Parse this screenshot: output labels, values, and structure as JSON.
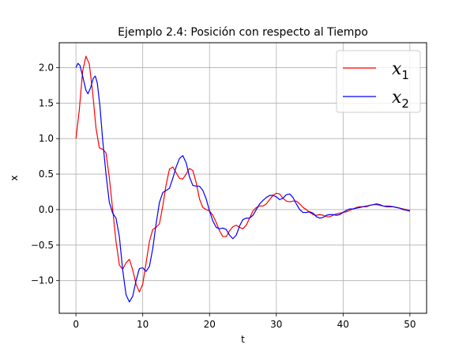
{
  "chart_data": {
    "type": "line",
    "title": "Ejemplo 2.4: Posición con respecto al Tiempo",
    "xlabel": "t",
    "ylabel": "x",
    "xlim": [
      -2.5,
      52.5
    ],
    "ylim": [
      -1.46,
      2.35
    ],
    "grid": true,
    "legend_position": "top-right",
    "xticks": [
      0,
      10,
      20,
      30,
      40,
      50
    ],
    "yticks": [
      -1.0,
      -0.5,
      0.0,
      0.5,
      1.0,
      1.5,
      2.0
    ],
    "xtick_labels": [
      "0",
      "10",
      "20",
      "30",
      "40",
      "50"
    ],
    "ytick_labels": [
      "−1.0",
      "−0.5",
      "0.0",
      "0.5",
      "1.0",
      "1.5",
      "2.0"
    ],
    "series": [
      {
        "name": "x1",
        "legend_main": "x",
        "legend_sub": "1",
        "color": "#ff0000",
        "points": [
          [
            0,
            1.0
          ],
          [
            0.5,
            1.4
          ],
          [
            1.0,
            1.95
          ],
          [
            1.5,
            2.16
          ],
          [
            2.0,
            2.05
          ],
          [
            2.5,
            1.65
          ],
          [
            3.0,
            1.15
          ],
          [
            3.5,
            0.87
          ],
          [
            4.0,
            0.85
          ],
          [
            4.5,
            0.8
          ],
          [
            5.0,
            0.45
          ],
          [
            5.5,
            0.0
          ],
          [
            6.0,
            -0.45
          ],
          [
            6.5,
            -0.78
          ],
          [
            7.0,
            -0.84
          ],
          [
            7.5,
            -0.75
          ],
          [
            8.0,
            -0.7
          ],
          [
            8.5,
            -0.85
          ],
          [
            9.0,
            -1.05
          ],
          [
            9.5,
            -1.16
          ],
          [
            10.0,
            -1.05
          ],
          [
            10.5,
            -0.75
          ],
          [
            11.0,
            -0.45
          ],
          [
            11.5,
            -0.28
          ],
          [
            12.0,
            -0.25
          ],
          [
            12.5,
            -0.2
          ],
          [
            13.0,
            0.05
          ],
          [
            13.5,
            0.35
          ],
          [
            14.0,
            0.57
          ],
          [
            14.5,
            0.6
          ],
          [
            15.0,
            0.52
          ],
          [
            15.5,
            0.44
          ],
          [
            16.0,
            0.43
          ],
          [
            16.5,
            0.5
          ],
          [
            17.0,
            0.58
          ],
          [
            17.5,
            0.55
          ],
          [
            18.0,
            0.38
          ],
          [
            18.5,
            0.15
          ],
          [
            19.0,
            0.03
          ],
          [
            19.5,
            0.0
          ],
          [
            20.0,
            -0.02
          ],
          [
            20.5,
            -0.08
          ],
          [
            21.0,
            -0.18
          ],
          [
            21.5,
            -0.3
          ],
          [
            22.0,
            -0.38
          ],
          [
            22.5,
            -0.38
          ],
          [
            23.0,
            -0.3
          ],
          [
            23.5,
            -0.24
          ],
          [
            24.0,
            -0.22
          ],
          [
            24.5,
            -0.25
          ],
          [
            25.0,
            -0.27
          ],
          [
            25.5,
            -0.22
          ],
          [
            26.0,
            -0.12
          ],
          [
            26.5,
            -0.02
          ],
          [
            27.0,
            0.03
          ],
          [
            27.5,
            0.05
          ],
          [
            28.0,
            0.05
          ],
          [
            28.5,
            0.08
          ],
          [
            29.0,
            0.14
          ],
          [
            29.5,
            0.2
          ],
          [
            30.0,
            0.23
          ],
          [
            30.5,
            0.22
          ],
          [
            31.0,
            0.16
          ],
          [
            31.5,
            0.12
          ],
          [
            32.0,
            0.11
          ],
          [
            32.5,
            0.12
          ],
          [
            33.0,
            0.12
          ],
          [
            33.5,
            0.08
          ],
          [
            34.0,
            0.03
          ],
          [
            34.5,
            0.0
          ],
          [
            35.0,
            -0.04
          ],
          [
            35.5,
            -0.07
          ],
          [
            36.0,
            -0.08
          ],
          [
            36.5,
            -0.07
          ],
          [
            37.0,
            -0.08
          ],
          [
            37.5,
            -0.1
          ],
          [
            38.0,
            -0.1
          ],
          [
            38.5,
            -0.08
          ],
          [
            39.0,
            -0.06
          ],
          [
            39.5,
            -0.05
          ],
          [
            40.0,
            -0.04
          ],
          [
            40.5,
            -0.03
          ],
          [
            41.0,
            -0.01
          ],
          [
            41.5,
            0.01
          ],
          [
            42.0,
            0.03
          ],
          [
            42.5,
            0.04
          ],
          [
            43.0,
            0.04
          ],
          [
            43.5,
            0.04
          ],
          [
            44.0,
            0.06
          ],
          [
            44.5,
            0.07
          ],
          [
            45.0,
            0.07
          ],
          [
            45.5,
            0.06
          ],
          [
            46.0,
            0.05
          ],
          [
            46.5,
            0.05
          ],
          [
            47.0,
            0.05
          ],
          [
            47.5,
            0.04
          ],
          [
            48.0,
            0.03
          ],
          [
            48.5,
            0.02
          ],
          [
            49.0,
            0.01
          ],
          [
            49.5,
            0.0
          ],
          [
            50.0,
            -0.01
          ]
        ]
      },
      {
        "name": "x2",
        "legend_main": "x",
        "legend_sub": "2",
        "color": "#0000ff",
        "points": [
          [
            0,
            2.0
          ],
          [
            0.3,
            2.06
          ],
          [
            0.6,
            2.03
          ],
          [
            1.0,
            1.88
          ],
          [
            1.5,
            1.68
          ],
          [
            1.8,
            1.63
          ],
          [
            2.2,
            1.72
          ],
          [
            2.6,
            1.85
          ],
          [
            2.9,
            1.88
          ],
          [
            3.2,
            1.78
          ],
          [
            3.6,
            1.45
          ],
          [
            4.0,
            0.98
          ],
          [
            4.5,
            0.5
          ],
          [
            5.0,
            0.1
          ],
          [
            5.5,
            -0.05
          ],
          [
            6.0,
            -0.12
          ],
          [
            6.5,
            -0.38
          ],
          [
            7.0,
            -0.85
          ],
          [
            7.5,
            -1.2
          ],
          [
            8.0,
            -1.3
          ],
          [
            8.5,
            -1.22
          ],
          [
            9.0,
            -1.0
          ],
          [
            9.5,
            -0.83
          ],
          [
            10.0,
            -0.82
          ],
          [
            10.5,
            -0.87
          ],
          [
            11.0,
            -0.8
          ],
          [
            11.5,
            -0.55
          ],
          [
            12.0,
            -0.2
          ],
          [
            12.5,
            0.1
          ],
          [
            13.0,
            0.24
          ],
          [
            13.5,
            0.27
          ],
          [
            14.0,
            0.3
          ],
          [
            14.5,
            0.44
          ],
          [
            15.0,
            0.6
          ],
          [
            15.5,
            0.72
          ],
          [
            16.0,
            0.76
          ],
          [
            16.5,
            0.66
          ],
          [
            17.0,
            0.46
          ],
          [
            17.5,
            0.34
          ],
          [
            18.0,
            0.33
          ],
          [
            18.5,
            0.33
          ],
          [
            19.0,
            0.27
          ],
          [
            19.5,
            0.15
          ],
          [
            20.0,
            -0.02
          ],
          [
            20.5,
            -0.16
          ],
          [
            21.0,
            -0.25
          ],
          [
            21.5,
            -0.27
          ],
          [
            22.0,
            -0.26
          ],
          [
            22.5,
            -0.28
          ],
          [
            23.0,
            -0.36
          ],
          [
            23.5,
            -0.41
          ],
          [
            24.0,
            -0.36
          ],
          [
            24.5,
            -0.23
          ],
          [
            25.0,
            -0.14
          ],
          [
            25.5,
            -0.12
          ],
          [
            26.0,
            -0.12
          ],
          [
            26.5,
            -0.08
          ],
          [
            27.0,
            0.0
          ],
          [
            27.5,
            0.08
          ],
          [
            28.0,
            0.13
          ],
          [
            28.5,
            0.17
          ],
          [
            29.0,
            0.2
          ],
          [
            29.5,
            0.2
          ],
          [
            30.0,
            0.18
          ],
          [
            30.5,
            0.14
          ],
          [
            31.0,
            0.16
          ],
          [
            31.5,
            0.21
          ],
          [
            32.0,
            0.22
          ],
          [
            32.5,
            0.17
          ],
          [
            33.0,
            0.08
          ],
          [
            33.5,
            0.0
          ],
          [
            34.0,
            -0.04
          ],
          [
            34.5,
            -0.04
          ],
          [
            35.0,
            -0.03
          ],
          [
            35.5,
            -0.05
          ],
          [
            36.0,
            -0.1
          ],
          [
            36.5,
            -0.12
          ],
          [
            37.0,
            -0.11
          ],
          [
            37.5,
            -0.08
          ],
          [
            38.0,
            -0.07
          ],
          [
            38.5,
            -0.07
          ],
          [
            39.0,
            -0.08
          ],
          [
            39.5,
            -0.07
          ],
          [
            40.0,
            -0.04
          ],
          [
            40.5,
            -0.01
          ],
          [
            41.0,
            0.01
          ],
          [
            41.5,
            0.01
          ],
          [
            42.0,
            0.02
          ],
          [
            42.5,
            0.03
          ],
          [
            43.0,
            0.04
          ],
          [
            43.5,
            0.05
          ],
          [
            44.0,
            0.06
          ],
          [
            44.5,
            0.07
          ],
          [
            45.0,
            0.08
          ],
          [
            45.5,
            0.07
          ],
          [
            46.0,
            0.05
          ],
          [
            46.5,
            0.04
          ],
          [
            47.0,
            0.04
          ],
          [
            47.5,
            0.04
          ],
          [
            48.0,
            0.03
          ],
          [
            48.5,
            0.02
          ],
          [
            49.0,
            0.0
          ],
          [
            49.5,
            -0.01
          ],
          [
            50.0,
            -0.02
          ]
        ]
      }
    ]
  }
}
